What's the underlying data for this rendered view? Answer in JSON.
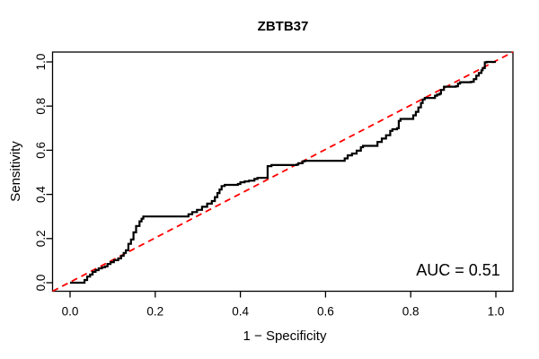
{
  "title": "ZBTB37",
  "auc_label": "AUC = 0.51",
  "colors": {
    "background": "#ffffff",
    "curve": "#000000",
    "diagonal": "#ff0000",
    "axis": "#000000",
    "text": "#000000"
  },
  "chart_data": {
    "type": "line",
    "subtype": "roc-step-curve",
    "title": "ZBTB37",
    "xlabel": "1 − Specificity",
    "ylabel": "Sensitivity",
    "xlim": [
      0,
      1
    ],
    "ylim": [
      0,
      1
    ],
    "grid": false,
    "legend": "none",
    "x_ticks": [
      0.0,
      0.2,
      0.4,
      0.6,
      0.8,
      1.0
    ],
    "y_ticks": [
      0.0,
      0.2,
      0.4,
      0.6,
      0.8,
      1.0
    ],
    "x_tick_labels": [
      "0.0",
      "0.2",
      "0.4",
      "0.6",
      "0.8",
      "1.0"
    ],
    "y_tick_labels": [
      "0.0",
      "0.2",
      "0.4",
      "0.6",
      "0.8",
      "1.0"
    ],
    "auc": 0.51,
    "annotations": [
      {
        "text": "AUC = 0.51",
        "x": 0.91,
        "y": 0.05
      }
    ],
    "series": [
      {
        "name": "ROC curve",
        "style": "step",
        "color": "#000000",
        "points": [
          [
            0.0,
            0.0
          ],
          [
            0.03,
            0.0
          ],
          [
            0.034,
            0.012
          ],
          [
            0.04,
            0.028
          ],
          [
            0.047,
            0.037
          ],
          [
            0.053,
            0.049
          ],
          [
            0.06,
            0.057
          ],
          [
            0.067,
            0.065
          ],
          [
            0.075,
            0.07
          ],
          [
            0.082,
            0.074
          ],
          [
            0.088,
            0.085
          ],
          [
            0.095,
            0.093
          ],
          [
            0.103,
            0.102
          ],
          [
            0.113,
            0.11
          ],
          [
            0.12,
            0.122
          ],
          [
            0.126,
            0.135
          ],
          [
            0.131,
            0.147
          ],
          [
            0.137,
            0.176
          ],
          [
            0.143,
            0.196
          ],
          [
            0.149,
            0.228
          ],
          [
            0.155,
            0.257
          ],
          [
            0.163,
            0.278
          ],
          [
            0.168,
            0.29
          ],
          [
            0.172,
            0.3
          ],
          [
            0.272,
            0.3
          ],
          [
            0.278,
            0.31
          ],
          [
            0.287,
            0.32
          ],
          [
            0.298,
            0.33
          ],
          [
            0.31,
            0.344
          ],
          [
            0.322,
            0.358
          ],
          [
            0.333,
            0.37
          ],
          [
            0.34,
            0.388
          ],
          [
            0.346,
            0.406
          ],
          [
            0.351,
            0.422
          ],
          [
            0.356,
            0.438
          ],
          [
            0.363,
            0.443
          ],
          [
            0.394,
            0.447
          ],
          [
            0.4,
            0.455
          ],
          [
            0.41,
            0.459
          ],
          [
            0.42,
            0.462
          ],
          [
            0.433,
            0.47
          ],
          [
            0.44,
            0.475
          ],
          [
            0.458,
            0.475
          ],
          [
            0.464,
            0.528
          ],
          [
            0.473,
            0.533
          ],
          [
            0.532,
            0.535
          ],
          [
            0.536,
            0.541
          ],
          [
            0.546,
            0.549
          ],
          [
            0.551,
            0.552
          ],
          [
            0.637,
            0.552
          ],
          [
            0.645,
            0.563
          ],
          [
            0.652,
            0.577
          ],
          [
            0.662,
            0.585
          ],
          [
            0.673,
            0.598
          ],
          [
            0.683,
            0.614
          ],
          [
            0.688,
            0.62
          ],
          [
            0.715,
            0.62
          ],
          [
            0.722,
            0.638
          ],
          [
            0.732,
            0.653
          ],
          [
            0.742,
            0.668
          ],
          [
            0.752,
            0.688
          ],
          [
            0.757,
            0.695
          ],
          [
            0.768,
            0.7
          ],
          [
            0.772,
            0.733
          ],
          [
            0.776,
            0.742
          ],
          [
            0.8,
            0.742
          ],
          [
            0.806,
            0.758
          ],
          [
            0.812,
            0.774
          ],
          [
            0.818,
            0.794
          ],
          [
            0.824,
            0.814
          ],
          [
            0.828,
            0.83
          ],
          [
            0.833,
            0.837
          ],
          [
            0.852,
            0.837
          ],
          [
            0.857,
            0.847
          ],
          [
            0.862,
            0.852
          ],
          [
            0.868,
            0.856
          ],
          [
            0.871,
            0.873
          ],
          [
            0.878,
            0.888
          ],
          [
            0.906,
            0.89
          ],
          [
            0.911,
            0.902
          ],
          [
            0.916,
            0.908
          ],
          [
            0.942,
            0.91
          ],
          [
            0.948,
            0.922
          ],
          [
            0.954,
            0.938
          ],
          [
            0.96,
            0.95
          ],
          [
            0.966,
            0.962
          ],
          [
            0.969,
            0.972
          ],
          [
            0.974,
            0.998
          ],
          [
            0.978,
            1.0
          ],
          [
            1.0,
            1.0
          ]
        ]
      },
      {
        "name": "Chance diagonal",
        "style": "dashed",
        "color": "#ff0000",
        "points": [
          [
            -0.04,
            -0.04
          ],
          [
            1.04,
            1.04
          ]
        ]
      }
    ]
  }
}
